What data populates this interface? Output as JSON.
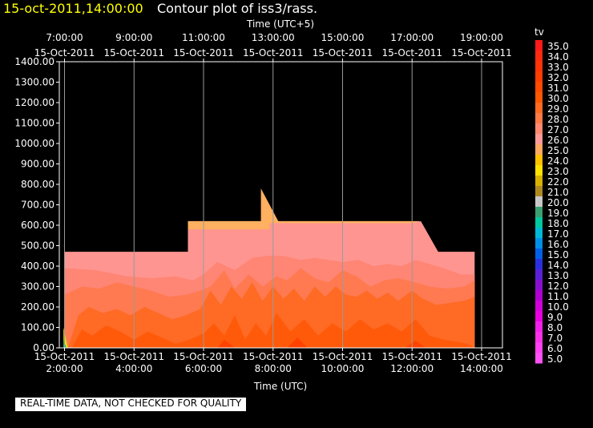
{
  "header": {
    "datetime": "15-oct-2011,14:00:00",
    "title": "Contour plot of iss3/rass."
  },
  "footer": {
    "note": "REAL-TIME DATA, NOT CHECKED FOR QUALITY"
  },
  "colors": {
    "background": "#000000",
    "date_text": "#ffff00",
    "text": "#ffffff",
    "grid": "#9a9a9a",
    "band_24_25": "#ffb060",
    "band_25_26": "#ff9590",
    "band_26_27": "#ff8574",
    "band_27_28": "#ff7a50",
    "band_28_29": "#ff6a24",
    "band_29_30": "#ff5a0a",
    "band_30_31": "#ff4200"
  },
  "chart_data": {
    "type": "heatmap",
    "title": "Contour plot of iss3/rass.",
    "xlabel_top": "Time (UTC+5)",
    "xlabel_bottom": "Time (UTC)",
    "ylabel": "",
    "x_unit": "hours UTC on 15-Oct-2011",
    "xlim": [
      1.85,
      14.6
    ],
    "ylim": [
      0,
      1400
    ],
    "grid": true,
    "y_ticks": [
      "0.00",
      "100.00",
      "200.00",
      "300.00",
      "400.00",
      "500.00",
      "600.00",
      "700.00",
      "800.00",
      "900.00",
      "1000.00",
      "1100.00",
      "1200.00",
      "1300.00",
      "1400.00"
    ],
    "x_ticks_bottom": [
      {
        "date": "15-Oct-2011",
        "time": "2:00:00",
        "x": 2
      },
      {
        "date": "15-Oct-2011",
        "time": "4:00:00",
        "x": 4
      },
      {
        "date": "15-Oct-2011",
        "time": "6:00:00",
        "x": 6
      },
      {
        "date": "15-Oct-2011",
        "time": "8:00:00",
        "x": 8
      },
      {
        "date": "15-Oct-2011",
        "time": "10:00:00",
        "x": 10
      },
      {
        "date": "15-Oct-2011",
        "time": "12:00:00",
        "x": 12
      },
      {
        "date": "15-Oct-2011",
        "time": "14:00:00",
        "x": 14
      }
    ],
    "x_ticks_top": [
      {
        "date": "15-Oct-2011",
        "time": "7:00:00",
        "x": 2
      },
      {
        "date": "15-Oct-2011",
        "time": "9:00:00",
        "x": 4
      },
      {
        "date": "15-Oct-2011",
        "time": "11:00:00",
        "x": 6
      },
      {
        "date": "15-Oct-2011",
        "time": "13:00:00",
        "x": 8
      },
      {
        "date": "15-Oct-2011",
        "time": "15:00:00",
        "x": 10
      },
      {
        "date": "15-Oct-2011",
        "time": "17:00:00",
        "x": 12
      },
      {
        "date": "15-Oct-2011",
        "time": "19:00:00",
        "x": 14
      }
    ],
    "colorbar": {
      "label": "tv",
      "levels": [
        {
          "label": "35.0",
          "color": "#ff1a1a"
        },
        {
          "label": "34.0",
          "color": "#ff2a10"
        },
        {
          "label": "33.0",
          "color": "#ff3308"
        },
        {
          "label": "32.0",
          "color": "#ff3d00"
        },
        {
          "label": "31.0",
          "color": "#ff4a00"
        },
        {
          "label": "30.0",
          "color": "#ff5800"
        },
        {
          "label": "29.0",
          "color": "#ff6a20"
        },
        {
          "label": "28.0",
          "color": "#ff7a48"
        },
        {
          "label": "27.0",
          "color": "#ff8a70"
        },
        {
          "label": "26.0",
          "color": "#ff9a96"
        },
        {
          "label": "25.0",
          "color": "#ffa860"
        },
        {
          "label": "24.0",
          "color": "#ffc000"
        },
        {
          "label": "23.0",
          "color": "#ffe000"
        },
        {
          "label": "22.0",
          "color": "#d8b000"
        },
        {
          "label": "21.0",
          "color": "#b08a20"
        },
        {
          "label": "20.0",
          "color": "#c8c8c8"
        },
        {
          "label": "19.0",
          "color": "#3aa070"
        },
        {
          "label": "18.0",
          "color": "#00c8a0"
        },
        {
          "label": "17.0",
          "color": "#00b8d8"
        },
        {
          "label": "16.0",
          "color": "#0090e8"
        },
        {
          "label": "15.0",
          "color": "#0060e8"
        },
        {
          "label": "14.0",
          "color": "#2a30e0"
        },
        {
          "label": "13.0",
          "color": "#5a20d8"
        },
        {
          "label": "12.0",
          "color": "#8a10d0"
        },
        {
          "label": "11.0",
          "color": "#b000d0"
        },
        {
          "label": "10.0",
          "color": "#d000d8"
        },
        {
          "label": "9.0",
          "color": "#e800e0"
        },
        {
          "label": "8.0",
          "color": "#f020e8"
        },
        {
          "label": "7.0",
          "color": "#f830e8"
        },
        {
          "label": "6.0",
          "color": "#ff40f0"
        },
        {
          "label": "5.0",
          "color": "#ff50f8"
        }
      ]
    },
    "regions": [
      {
        "level": "24-25",
        "color_key": "band_24_25",
        "points": [
          [
            5.55,
            0
          ],
          [
            5.55,
            620
          ],
          [
            7.65,
            620
          ],
          [
            7.65,
            780
          ],
          [
            8.15,
            620
          ],
          [
            12.2,
            620
          ],
          [
            12.2,
            0
          ]
        ]
      },
      {
        "level": "25-26",
        "color_key": "band_25_26",
        "points": [
          [
            2,
            0
          ],
          [
            2,
            470
          ],
          [
            5.55,
            470
          ],
          [
            5.55,
            580
          ],
          [
            7.9,
            580
          ],
          [
            7.9,
            610
          ],
          [
            12.0,
            610
          ],
          [
            12.25,
            620
          ],
          [
            12.75,
            470
          ],
          [
            13.8,
            470
          ],
          [
            13.8,
            0
          ]
        ]
      },
      {
        "level": "26-27",
        "color_key": "band_26_27",
        "points": [
          [
            2,
            0
          ],
          [
            2,
            390
          ],
          [
            2.9,
            380
          ],
          [
            3.8,
            350
          ],
          [
            4.5,
            340
          ],
          [
            5.2,
            350
          ],
          [
            5.7,
            330
          ],
          [
            6.0,
            360
          ],
          [
            6.4,
            420
          ],
          [
            6.9,
            380
          ],
          [
            7.4,
            440
          ],
          [
            7.85,
            450
          ],
          [
            8.3,
            450
          ],
          [
            8.8,
            430
          ],
          [
            9.2,
            440
          ],
          [
            9.6,
            430
          ],
          [
            10.0,
            420
          ],
          [
            10.45,
            430
          ],
          [
            10.9,
            400
          ],
          [
            11.3,
            410
          ],
          [
            11.7,
            400
          ],
          [
            12.1,
            430
          ],
          [
            12.5,
            410
          ],
          [
            12.9,
            390
          ],
          [
            13.4,
            360
          ],
          [
            13.8,
            360
          ],
          [
            13.8,
            0
          ]
        ]
      },
      {
        "level": "27-28",
        "color_key": "band_27_28",
        "points": [
          [
            2,
            0
          ],
          [
            2,
            260
          ],
          [
            2.5,
            300
          ],
          [
            3.0,
            290
          ],
          [
            3.5,
            320
          ],
          [
            4.0,
            300
          ],
          [
            4.5,
            280
          ],
          [
            5.0,
            250
          ],
          [
            5.5,
            260
          ],
          [
            5.9,
            280
          ],
          [
            6.2,
            300
          ],
          [
            6.6,
            380
          ],
          [
            6.9,
            290
          ],
          [
            7.3,
            360
          ],
          [
            7.7,
            300
          ],
          [
            8.1,
            350
          ],
          [
            8.4,
            330
          ],
          [
            8.8,
            390
          ],
          [
            9.2,
            340
          ],
          [
            9.6,
            320
          ],
          [
            10.0,
            380
          ],
          [
            10.4,
            350
          ],
          [
            10.8,
            300
          ],
          [
            11.2,
            330
          ],
          [
            11.6,
            340
          ],
          [
            12.1,
            320
          ],
          [
            12.5,
            300
          ],
          [
            13.0,
            290
          ],
          [
            13.5,
            300
          ],
          [
            13.8,
            330
          ],
          [
            13.8,
            0
          ]
        ]
      },
      {
        "level": "28-29",
        "color_key": "band_28_29",
        "points": [
          [
            2.1,
            0
          ],
          [
            2.4,
            160
          ],
          [
            2.7,
            200
          ],
          [
            3.1,
            170
          ],
          [
            3.5,
            190
          ],
          [
            3.9,
            160
          ],
          [
            4.3,
            200
          ],
          [
            4.7,
            170
          ],
          [
            5.1,
            140
          ],
          [
            5.5,
            160
          ],
          [
            5.9,
            190
          ],
          [
            6.2,
            280
          ],
          [
            6.5,
            210
          ],
          [
            6.8,
            300
          ],
          [
            7.1,
            240
          ],
          [
            7.4,
            320
          ],
          [
            7.7,
            230
          ],
          [
            8.0,
            300
          ],
          [
            8.3,
            240
          ],
          [
            8.6,
            290
          ],
          [
            8.9,
            230
          ],
          [
            9.2,
            300
          ],
          [
            9.5,
            250
          ],
          [
            9.8,
            300
          ],
          [
            10.1,
            260
          ],
          [
            10.4,
            250
          ],
          [
            10.7,
            280
          ],
          [
            11.0,
            240
          ],
          [
            11.3,
            270
          ],
          [
            11.6,
            230
          ],
          [
            12.0,
            280
          ],
          [
            12.3,
            240
          ],
          [
            12.7,
            210
          ],
          [
            13.1,
            220
          ],
          [
            13.5,
            230
          ],
          [
            13.8,
            250
          ],
          [
            13.8,
            0
          ]
        ]
      },
      {
        "level": "29-30",
        "color_key": "band_29_30",
        "points": [
          [
            2.2,
            0
          ],
          [
            2.5,
            90
          ],
          [
            2.8,
            60
          ],
          [
            3.2,
            110
          ],
          [
            3.6,
            80
          ],
          [
            4.0,
            40
          ],
          [
            4.4,
            80
          ],
          [
            4.8,
            50
          ],
          [
            5.2,
            20
          ],
          [
            5.6,
            40
          ],
          [
            6.0,
            70
          ],
          [
            6.3,
            120
          ],
          [
            6.6,
            60
          ],
          [
            6.9,
            160
          ],
          [
            7.2,
            40
          ],
          [
            7.5,
            120
          ],
          [
            7.8,
            60
          ],
          [
            8.1,
            170
          ],
          [
            8.5,
            80
          ],
          [
            8.9,
            140
          ],
          [
            9.3,
            60
          ],
          [
            9.7,
            120
          ],
          [
            10.1,
            80
          ],
          [
            10.5,
            140
          ],
          [
            10.9,
            90
          ],
          [
            11.3,
            120
          ],
          [
            11.7,
            80
          ],
          [
            12.1,
            140
          ],
          [
            12.5,
            60
          ],
          [
            12.9,
            40
          ],
          [
            13.3,
            30
          ],
          [
            13.6,
            20
          ],
          [
            13.8,
            0
          ]
        ]
      },
      {
        "level": "30-31",
        "color_key": "band_30_31",
        "points": [
          [
            6.4,
            0
          ],
          [
            6.6,
            40
          ],
          [
            6.9,
            0
          ]
        ]
      },
      {
        "level": "30-31",
        "color_key": "band_30_31",
        "points": [
          [
            8.4,
            0
          ],
          [
            8.7,
            50
          ],
          [
            9.0,
            0
          ]
        ]
      },
      {
        "level": "30-31",
        "color_key": "band_30_31",
        "points": [
          [
            11.8,
            0
          ],
          [
            12.1,
            35
          ],
          [
            12.4,
            0
          ]
        ]
      }
    ],
    "edge_marks": [
      {
        "level": "20-24",
        "color": "#e8e000",
        "points": [
          [
            1.97,
            0
          ],
          [
            1.97,
            100
          ],
          [
            2.1,
            0
          ]
        ]
      },
      {
        "level": "17-19",
        "color": "#00c090",
        "points": [
          [
            1.97,
            0
          ],
          [
            1.97,
            40
          ],
          [
            2.05,
            0
          ]
        ]
      }
    ]
  }
}
